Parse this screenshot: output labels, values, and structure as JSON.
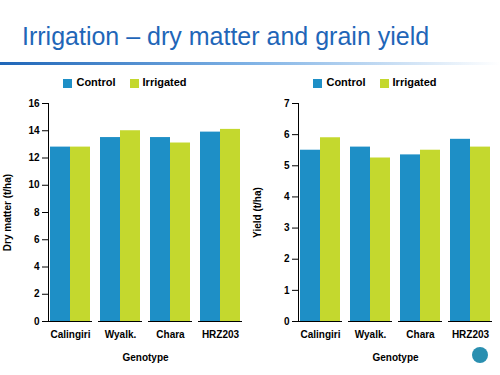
{
  "title": "Irrigation – dry matter and grain yield",
  "chart_data": [
    {
      "type": "bar",
      "legend": "top",
      "xlabel": "Genotype",
      "ylabel": "Dry matter (t/ha)",
      "categories": [
        "Calingiri",
        "Wyalk.",
        "Chara",
        "HRZ203"
      ],
      "series": [
        {
          "name": "Control",
          "color": "#1e8fc6",
          "values": [
            12.8,
            13.5,
            13.5,
            13.9
          ]
        },
        {
          "name": "Irrigated",
          "color": "#c4d82e",
          "values": [
            12.8,
            14.0,
            13.1,
            14.1
          ]
        }
      ],
      "ylim": [
        0,
        16
      ],
      "yticks": [
        0,
        2,
        4,
        6,
        8,
        10,
        12,
        14,
        16
      ]
    },
    {
      "type": "bar",
      "legend": "top",
      "xlabel": "Genotype",
      "ylabel": "Yield (t/ha)",
      "categories": [
        "Calingiri",
        "Wyalk.",
        "Chara",
        "HRZ203"
      ],
      "series": [
        {
          "name": "Control",
          "color": "#1e8fc6",
          "values": [
            5.5,
            5.6,
            5.35,
            5.85
          ]
        },
        {
          "name": "Irrigated",
          "color": "#c4d82e",
          "values": [
            5.9,
            5.25,
            5.5,
            5.6
          ]
        }
      ],
      "ylim": [
        0,
        7
      ],
      "yticks": [
        0,
        1,
        2,
        3,
        4,
        5,
        6,
        7
      ]
    }
  ]
}
